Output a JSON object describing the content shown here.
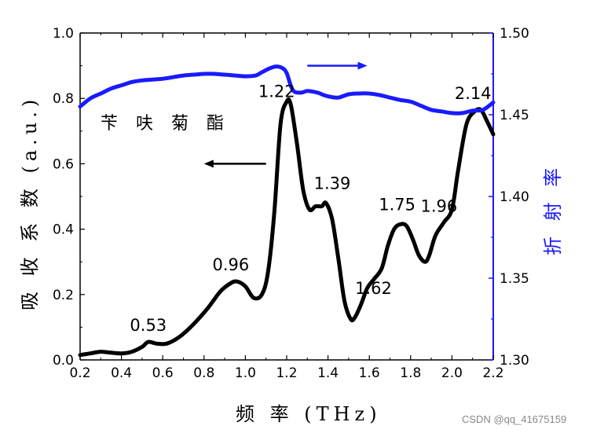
{
  "chart_data": {
    "type": "line",
    "xlabel": "频 率 (THz)",
    "ylabel_left": "吸 收 系 数 (a.u.)",
    "ylabel_right": "折 射 率",
    "inset_label": "苄 呋 菊 酯",
    "watermark": "CSDN @qq_41675159",
    "xlim": [
      0.2,
      2.2
    ],
    "ylim_left": [
      0.0,
      1.0
    ],
    "ylim_right": [
      1.3,
      1.5
    ],
    "x_ticks": [
      "0.2",
      "0.4",
      "0.6",
      "0.8",
      "1.0",
      "1.2",
      "1.4",
      "1.6",
      "1.8",
      "2.0",
      "2.2"
    ],
    "y_ticks_left": [
      "0.0",
      "0.2",
      "0.4",
      "0.6",
      "0.8",
      "1.0"
    ],
    "y_ticks_right": [
      "1.30",
      "1.35",
      "1.40",
      "1.45",
      "1.50"
    ],
    "colors": {
      "absorption": "#000000",
      "refractive": "#1a1aff",
      "right_axis": "#1a1aff"
    },
    "series": [
      {
        "axis": "left",
        "x": [
          0.2,
          0.25,
          0.3,
          0.35,
          0.4,
          0.45,
          0.5,
          0.53,
          0.57,
          0.62,
          0.68,
          0.75,
          0.82,
          0.88,
          0.93,
          0.96,
          1.0,
          1.04,
          1.08,
          1.11,
          1.14,
          1.17,
          1.2,
          1.22,
          1.25,
          1.28,
          1.31,
          1.34,
          1.37,
          1.39,
          1.42,
          1.45,
          1.48,
          1.51,
          1.53,
          1.56,
          1.59,
          1.62,
          1.66,
          1.69,
          1.72,
          1.75,
          1.78,
          1.81,
          1.84,
          1.87,
          1.89,
          1.92,
          1.96,
          2.0,
          2.03,
          2.07,
          2.11,
          2.14,
          2.17,
          2.2
        ],
        "y": [
          0.015,
          0.02,
          0.025,
          0.022,
          0.02,
          0.025,
          0.04,
          0.055,
          0.05,
          0.05,
          0.07,
          0.11,
          0.16,
          0.21,
          0.235,
          0.24,
          0.225,
          0.19,
          0.2,
          0.27,
          0.45,
          0.72,
          0.79,
          0.78,
          0.66,
          0.52,
          0.46,
          0.47,
          0.47,
          0.48,
          0.43,
          0.31,
          0.18,
          0.125,
          0.13,
          0.17,
          0.22,
          0.245,
          0.28,
          0.35,
          0.4,
          0.415,
          0.41,
          0.37,
          0.32,
          0.3,
          0.32,
          0.38,
          0.42,
          0.46,
          0.58,
          0.72,
          0.76,
          0.765,
          0.73,
          0.69
        ]
      },
      {
        "axis": "right",
        "x": [
          0.2,
          0.25,
          0.3,
          0.35,
          0.4,
          0.45,
          0.5,
          0.55,
          0.6,
          0.65,
          0.7,
          0.75,
          0.8,
          0.85,
          0.9,
          0.95,
          1.0,
          1.05,
          1.08,
          1.12,
          1.15,
          1.18,
          1.2,
          1.23,
          1.27,
          1.3,
          1.35,
          1.38,
          1.41,
          1.45,
          1.5,
          1.55,
          1.6,
          1.65,
          1.7,
          1.75,
          1.8,
          1.85,
          1.9,
          1.95,
          2.0,
          2.05,
          2.1,
          2.15,
          2.2
        ],
        "y": [
          1.455,
          1.46,
          1.463,
          1.466,
          1.468,
          1.47,
          1.471,
          1.4715,
          1.472,
          1.473,
          1.474,
          1.4745,
          1.475,
          1.475,
          1.4745,
          1.474,
          1.4735,
          1.474,
          1.476,
          1.4785,
          1.4795,
          1.4785,
          1.4755,
          1.465,
          1.4635,
          1.4645,
          1.4635,
          1.462,
          1.461,
          1.4605,
          1.4625,
          1.463,
          1.463,
          1.462,
          1.4605,
          1.459,
          1.458,
          1.4555,
          1.453,
          1.452,
          1.451,
          1.451,
          1.4525,
          1.453,
          1.4575
        ]
      }
    ],
    "peak_labels": [
      {
        "text": "0.53",
        "x": 0.53,
        "y": 0.055
      },
      {
        "text": "0.96",
        "x": 0.96,
        "y": 0.24
      },
      {
        "text": "1.22",
        "x": 1.22,
        "y": 0.79
      },
      {
        "text": "1.39",
        "x": 1.39,
        "y": 0.48
      },
      {
        "text": "1.62",
        "x": 1.62,
        "y": 0.245
      },
      {
        "text": "1.75",
        "x": 1.75,
        "y": 0.415
      },
      {
        "text": "1.96",
        "x": 1.96,
        "y": 0.42
      },
      {
        "text": "2.14",
        "x": 2.14,
        "y": 0.765
      }
    ],
    "arrows": [
      {
        "name": "left-arrow",
        "axis": "left",
        "x_from": 1.1,
        "x_to": 0.8,
        "y": 0.6,
        "color": "#000000"
      },
      {
        "name": "right-arrow",
        "axis": "left",
        "x_from": 1.3,
        "x_to": 1.59,
        "y": 0.9,
        "color": "#1a1aff"
      }
    ]
  }
}
